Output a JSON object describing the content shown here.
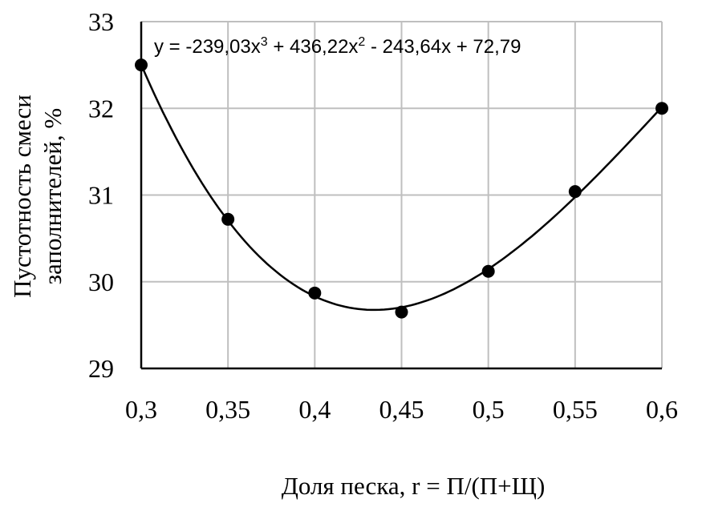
{
  "chart_data": {
    "type": "scatter",
    "title": "",
    "xlabel": "Доля песка, r = П/(П+Щ)",
    "ylabel_lines": [
      "Пустотность смеси",
      "заполнителей, %"
    ],
    "xlim": [
      0.3,
      0.6
    ],
    "ylim": [
      29,
      33
    ],
    "x_ticks": [
      0.3,
      0.35,
      0.4,
      0.45,
      0.5,
      0.55,
      0.6
    ],
    "x_tick_labels": [
      "0,3",
      "0,35",
      "0,4",
      "0,45",
      "0,5",
      "0,55",
      "0,6"
    ],
    "y_ticks": [
      29,
      30,
      31,
      32,
      33
    ],
    "y_tick_labels": [
      "29",
      "30",
      "31",
      "32",
      "33"
    ],
    "grid": true,
    "series": [
      {
        "name": "data",
        "x": [
          0.3,
          0.35,
          0.4,
          0.45,
          0.5,
          0.55,
          0.6
        ],
        "y": [
          32.5,
          30.72,
          29.87,
          29.65,
          30.12,
          31.04,
          32.0
        ]
      }
    ],
    "trendline": {
      "type": "polynomial",
      "order": 3,
      "coefficients": [
        -239.03,
        436.22,
        -243.64,
        72.79
      ],
      "equation_parts": [
        "y = -239,03x",
        "3",
        " + 436,22x",
        "2",
        " - 243,64x + 72,79"
      ]
    },
    "colors": {
      "grid": "#bfbfbf",
      "axis": "#000000",
      "marker": "#000000",
      "line": "#000000"
    }
  }
}
